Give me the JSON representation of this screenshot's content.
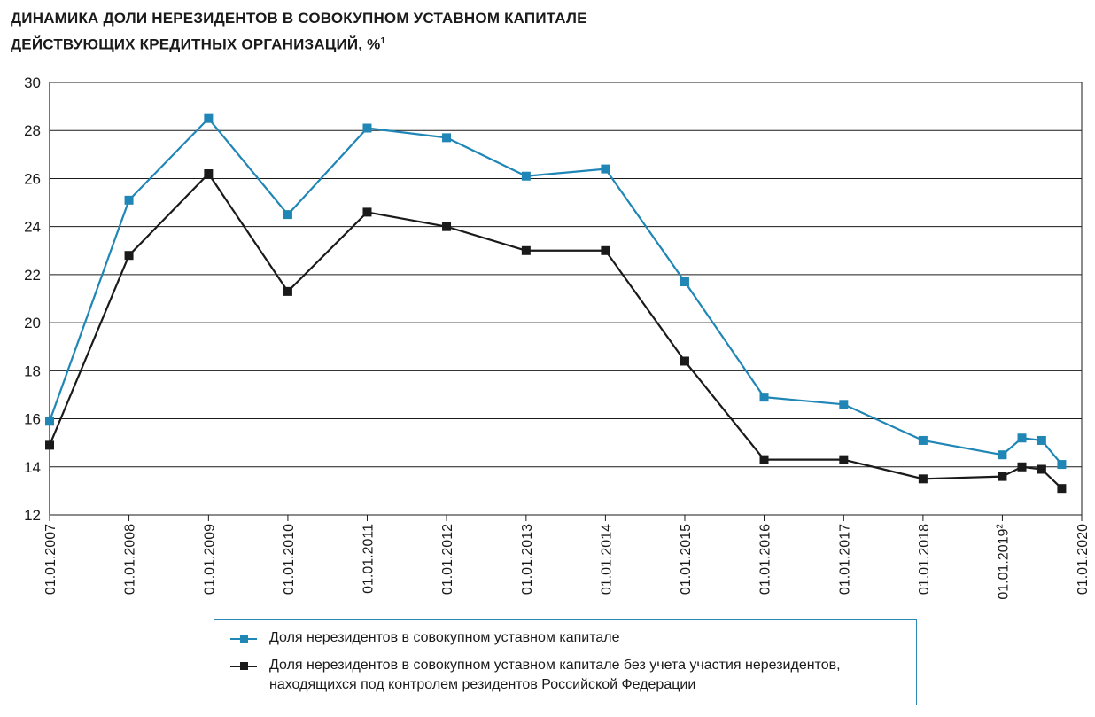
{
  "title_line1": "ДИНАМИКА ДОЛИ НЕРЕЗИДЕНТОВ В СОВОКУПНОМ УСТАВНОМ КАПИТАЛЕ",
  "title_line2": "ДЕЙСТВУЮЩИХ КРЕДИТНЫХ ОРГАНИЗАЦИЙ, %",
  "title_sup": "1",
  "colors": {
    "series1": "#1f86b6",
    "series2": "#1a1a1a",
    "grid": "#1a1a1a",
    "legend_border": "#2a8ab5"
  },
  "chart_data": {
    "type": "line",
    "ylim": [
      12,
      30
    ],
    "yticks": [
      12,
      14,
      16,
      18,
      20,
      22,
      24,
      26,
      28,
      30
    ],
    "grid": true,
    "legend_position": "bottom",
    "xticks": [
      "01.01.2007",
      "01.01.2008",
      "01.01.2009",
      "01.01.2010",
      "01.01.2011",
      "01.01.2012",
      "01.01.2013",
      "01.01.2014",
      "01.01.2015",
      "01.01.2016",
      "01.01.2017",
      "01.01.2018",
      "01.01.2019",
      "01.01.2020"
    ],
    "xtick_sup": [
      "",
      "",
      "",
      "",
      "",
      "",
      "",
      "",
      "",
      "",
      "",
      "",
      "2",
      ""
    ],
    "x": [
      "2007-01-01",
      "2008-01-01",
      "2009-01-01",
      "2010-01-01",
      "2011-01-01",
      "2012-01-01",
      "2013-01-01",
      "2014-01-01",
      "2015-01-01",
      "2016-01-01",
      "2017-01-01",
      "2018-01-01",
      "2019-01-01",
      "2019-04-01",
      "2019-07-01",
      "2019-10-01"
    ],
    "series": [
      {
        "name": "Доля нерезидентов в совокупном уставном капитале",
        "values": [
          15.9,
          25.1,
          28.5,
          24.5,
          28.1,
          27.7,
          26.1,
          26.4,
          21.7,
          16.9,
          16.6,
          15.1,
          14.5,
          15.2,
          15.1,
          14.1
        ]
      },
      {
        "name": "Доля нерезидентов в совокупном уставном капитале без учета участия нерезидентов, находящихся под контролем резидентов Российской Федерации",
        "name_line1": "Доля нерезидентов в совокупном уставном капитале без учета участия нерезидентов,",
        "name_line2": "находящихся под контролем резидентов Российской Федерации",
        "values": [
          14.9,
          22.8,
          26.2,
          21.3,
          24.6,
          24.0,
          23.0,
          23.0,
          18.4,
          14.3,
          14.3,
          13.5,
          13.6,
          14.0,
          13.9,
          13.1
        ]
      }
    ]
  }
}
